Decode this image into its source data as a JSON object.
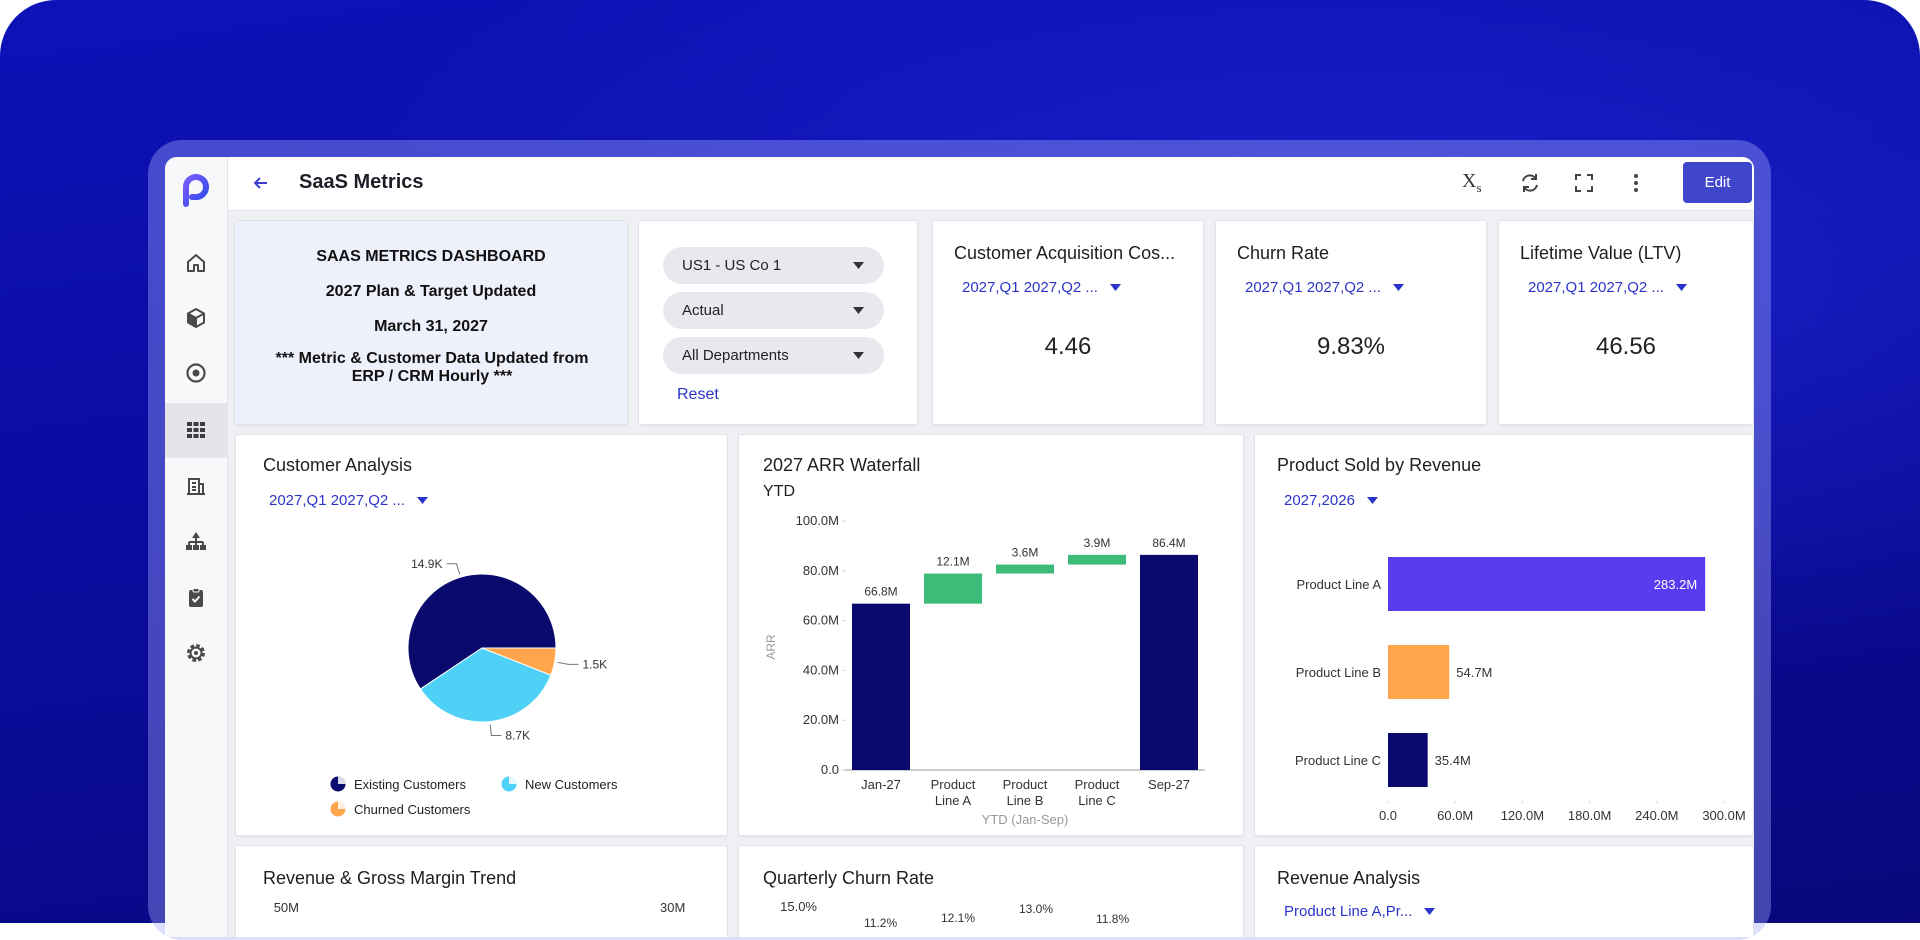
{
  "header": {
    "title": "SaaS Metrics",
    "edit_button": "Edit",
    "variables_icon": {
      "main": "X",
      "sub": "s"
    }
  },
  "summary": {
    "lines": [
      "SAAS METRICS DASHBOARD",
      "2027 Plan & Target Updated",
      "March 31, 2027",
      "*** Metric & Customer Data Updated from ERP / CRM Hourly ***"
    ]
  },
  "filters": {
    "dropdowns": [
      "US1 - US Co 1",
      "Actual",
      "All Departments"
    ],
    "reset": "Reset"
  },
  "kpis": [
    {
      "title": "Customer Acquisition Cos...",
      "filter": "2027,Q1 2027,Q2 ...",
      "value": "4.46"
    },
    {
      "title": "Churn Rate",
      "filter": "2027,Q1 2027,Q2 ...",
      "value": "9.83%"
    },
    {
      "title": "Lifetime Value (LTV)",
      "filter": "2027,Q1 2027,Q2 ...",
      "value": "46.56"
    }
  ],
  "customer_analysis": {
    "type": "pie",
    "title": "Customer Analysis",
    "filter": "2027,Q1 2027,Q2 ...",
    "categories": [
      "Existing Customers",
      "New Customers",
      "Churned Customers"
    ],
    "values": [
      14900,
      8700,
      1500
    ],
    "value_labels": [
      "14.9K",
      "8.7K",
      "1.5K"
    ],
    "colors": [
      "#0a0a6e",
      "#4fd0f7",
      "#ffa64d"
    ]
  },
  "arr_waterfall": {
    "type": "waterfall",
    "title": "2027 ARR Waterfall",
    "subtitle": "YTD",
    "y_label": "ARR",
    "x_label": "YTD (Jan-Sep)",
    "categories": [
      "Jan-27",
      "Product Line A",
      "Product Line B",
      "Product Line C",
      "Sep-27"
    ],
    "values": [
      66.8,
      12.1,
      3.6,
      3.9,
      86.4
    ],
    "value_labels": [
      "66.8M",
      "12.1M",
      "3.6M",
      "3.9M",
      "86.4M"
    ],
    "totals": [
      true,
      false,
      false,
      false,
      true
    ],
    "colors": {
      "total": "#0a0a6e",
      "increase": "#3dbb79"
    },
    "ylim": [
      0,
      100
    ],
    "yticks": [
      {
        "value": 0,
        "label": "0.0"
      },
      {
        "value": 20,
        "label": "20.0M"
      },
      {
        "value": 40,
        "label": "40.0M"
      },
      {
        "value": 60,
        "label": "60.0M"
      },
      {
        "value": 80,
        "label": "80.0M"
      },
      {
        "value": 100,
        "label": "100.0M"
      }
    ]
  },
  "product_revenue": {
    "type": "hbar",
    "title": "Product Sold by Revenue",
    "filter": "2027,2026",
    "categories": [
      "Product Line A",
      "Product Line B",
      "Product Line C"
    ],
    "values": [
      283.2,
      54.7,
      35.4
    ],
    "value_labels": [
      "283.2M",
      "54.7M",
      "35.4M"
    ],
    "colors": [
      "#5a3cf0",
      "#ffa64d",
      "#0a0a6e"
    ],
    "xlim": [
      0,
      300
    ],
    "xticks": [
      {
        "value": 0,
        "label": "0.0"
      },
      {
        "value": 60,
        "label": "60.0M"
      },
      {
        "value": 120,
        "label": "120.0M"
      },
      {
        "value": 180,
        "label": "180.0M"
      },
      {
        "value": 240,
        "label": "240.0M"
      },
      {
        "value": 300,
        "label": "300.0M"
      }
    ]
  },
  "revenue_trend": {
    "title": "Revenue & Gross Margin Trend",
    "y_top_label": "50M",
    "y2_top_label": "30M"
  },
  "churn_rate": {
    "title": "Quarterly Churn Rate",
    "y_top_label": "15.0%",
    "point_labels": [
      "11.2%",
      "12.1%",
      "13.0%",
      "11.8%"
    ]
  },
  "revenue_analysis": {
    "title": "Revenue Analysis",
    "filter": "Product Line A,Pr..."
  }
}
